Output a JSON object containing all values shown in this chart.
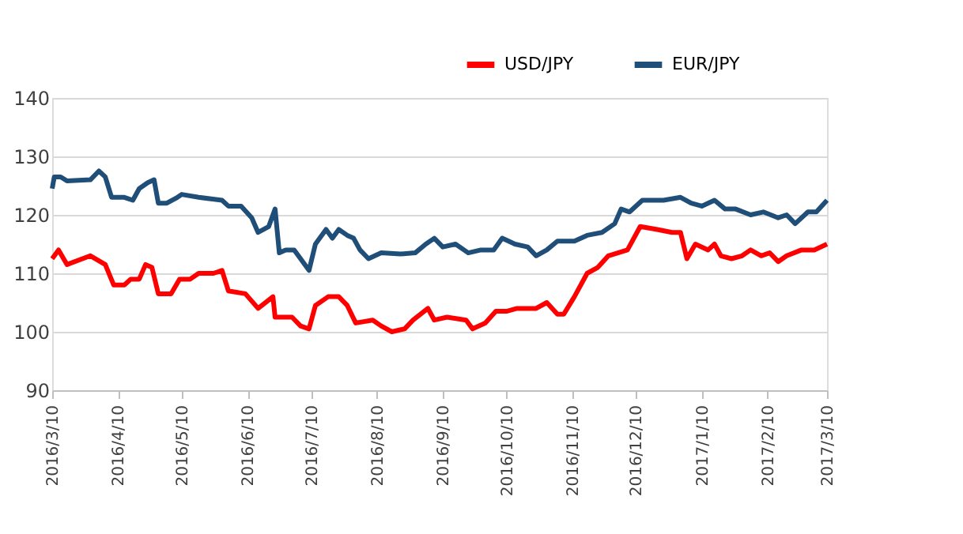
{
  "chart_data": {
    "type": "line",
    "x": [
      "2016-03-10",
      "2016-03-13",
      "2016-03-17",
      "2016-03-28",
      "2016-04-04",
      "2016-04-08",
      "2016-04-13",
      "2016-04-16",
      "2016-04-20",
      "2016-04-23",
      "2016-04-26",
      "2016-04-29",
      "2016-05-05",
      "2016-05-09",
      "2016-05-14",
      "2016-05-18",
      "2016-05-25",
      "2016-05-29",
      "2016-06-01",
      "2016-06-09",
      "2016-06-15",
      "2016-06-22",
      "2016-06-23",
      "2016-07-01",
      "2016-07-05",
      "2016-07-09",
      "2016-07-12",
      "2016-07-18",
      "2016-07-23",
      "2016-07-27",
      "2016-07-31",
      "2016-08-08",
      "2016-08-12",
      "2016-08-17",
      "2016-08-23",
      "2016-08-27",
      "2016-09-03",
      "2016-09-06",
      "2016-09-12",
      "2016-09-21",
      "2016-09-24",
      "2016-09-30",
      "2016-10-05",
      "2016-10-10",
      "2016-10-15",
      "2016-10-24",
      "2016-10-29",
      "2016-11-03",
      "2016-11-06",
      "2016-11-11",
      "2016-11-17",
      "2016-11-22",
      "2016-11-27",
      "2016-12-06",
      "2016-12-12",
      "2016-12-20",
      "2016-12-27",
      "2016-12-31",
      "2017-01-03",
      "2017-01-07",
      "2017-01-13",
      "2017-01-16",
      "2017-01-19",
      "2017-01-24",
      "2017-01-29",
      "2017-02-02",
      "2017-02-07",
      "2017-02-11",
      "2017-02-15",
      "2017-02-19",
      "2017-02-26",
      "2017-03-04",
      "2017-03-10"
    ],
    "series": [
      {
        "name": "USD/JPY",
        "color": "#ff0000",
        "values": [
          112.5,
          114,
          111.5,
          113,
          111.5,
          108,
          108,
          109,
          109,
          111.5,
          111,
          106.5,
          106.5,
          109,
          109,
          110,
          110,
          110.5,
          107,
          106.5,
          104,
          106,
          102.5,
          102.5,
          101,
          100.5,
          104.5,
          106,
          106,
          104.5,
          101.5,
          102,
          101,
          100,
          100.5,
          102,
          104,
          102,
          102.5,
          102,
          100.5,
          101.5,
          103.5,
          103.5,
          104,
          104,
          105,
          103,
          103,
          106,
          110,
          111,
          113,
          114,
          118,
          117.5,
          117,
          117,
          112.5,
          115,
          114,
          115,
          113,
          112.5,
          113,
          114,
          113,
          113.5,
          112,
          113,
          114,
          114,
          115
        ]
      },
      {
        "name": "EUR/JPY",
        "color": "#1f4e79",
        "x": [
          "2016-03-10",
          "2016-03-11",
          "2016-03-14",
          "2016-03-17",
          "2016-03-28",
          "2016-04-01",
          "2016-04-04",
          "2016-04-07",
          "2016-04-13",
          "2016-04-17",
          "2016-04-20",
          "2016-04-24",
          "2016-04-27",
          "2016-04-29",
          "2016-05-03",
          "2016-05-08",
          "2016-05-10",
          "2016-05-18",
          "2016-05-29",
          "2016-06-01",
          "2016-06-07",
          "2016-06-12",
          "2016-06-15",
          "2016-06-20",
          "2016-06-23",
          "2016-06-25",
          "2016-06-28",
          "2016-07-02",
          "2016-07-05",
          "2016-07-09",
          "2016-07-12",
          "2016-07-17",
          "2016-07-20",
          "2016-07-23",
          "2016-07-27",
          "2016-07-30",
          "2016-08-02",
          "2016-08-06",
          "2016-08-12",
          "2016-08-21",
          "2016-08-28",
          "2016-09-02",
          "2016-09-06",
          "2016-09-10",
          "2016-09-16",
          "2016-09-22",
          "2016-09-28",
          "2016-10-04",
          "2016-10-08",
          "2016-10-14",
          "2016-10-20",
          "2016-10-24",
          "2016-10-29",
          "2016-11-03",
          "2016-11-11",
          "2016-11-17",
          "2016-11-24",
          "2016-11-30",
          "2016-12-03",
          "2016-12-07",
          "2016-12-13",
          "2016-12-17",
          "2016-12-23",
          "2016-12-31",
          "2017-01-05",
          "2017-01-10",
          "2017-01-16",
          "2017-01-21",
          "2017-01-26",
          "2017-02-02",
          "2017-02-08",
          "2017-02-15",
          "2017-02-19",
          "2017-02-23",
          "2017-03-01",
          "2017-03-05",
          "2017-03-10"
        ],
        "values": [
          124.5,
          126.5,
          126.5,
          125.8,
          126,
          127.5,
          126.5,
          123,
          123,
          122.5,
          124.5,
          125.5,
          126,
          122,
          122,
          123,
          123.5,
          123,
          122.5,
          121.5,
          121.5,
          119.5,
          117,
          118,
          121,
          113.5,
          114,
          114,
          112.5,
          110.5,
          115,
          117.5,
          116,
          117.5,
          116.5,
          116,
          114,
          112.5,
          113.5,
          113.3,
          113.5,
          115,
          116,
          114.5,
          115,
          113.5,
          114,
          114,
          116,
          115,
          114.5,
          113,
          114,
          115.5,
          115.5,
          116.5,
          117,
          118.5,
          121,
          120.5,
          122.5,
          122.5,
          122.5,
          123,
          122,
          121.5,
          122.5,
          121,
          121,
          120,
          120.5,
          119.5,
          120,
          118.5,
          120.5,
          120.5,
          122.5
        ]
      }
    ],
    "xlim": [
      "2016-03-10",
      "2017-03-10"
    ],
    "xticks": [
      {
        "value": "2016-03-10",
        "label": "2016/3/10"
      },
      {
        "value": "2016-04-10",
        "label": "2016/4/10"
      },
      {
        "value": "2016-05-10",
        "label": "2016/5/10"
      },
      {
        "value": "2016-06-10",
        "label": "2016/6/10"
      },
      {
        "value": "2016-07-10",
        "label": "2016/7/10"
      },
      {
        "value": "2016-08-10",
        "label": "2016/8/10"
      },
      {
        "value": "2016-09-10",
        "label": "2016/9/10"
      },
      {
        "value": "2016-10-10",
        "label": "2016/10/10"
      },
      {
        "value": "2016-11-10",
        "label": "2016/11/10"
      },
      {
        "value": "2016-12-10",
        "label": "2016/12/10"
      },
      {
        "value": "2017-01-10",
        "label": "2017/1/10"
      },
      {
        "value": "2017-02-10",
        "label": "2017/2/10"
      },
      {
        "value": "2017-03-10",
        "label": "2017/3/10"
      }
    ],
    "ylim": [
      90,
      140
    ],
    "yticks": [
      90,
      100,
      110,
      120,
      130,
      140
    ],
    "grid": "y",
    "legend": "top right",
    "marker": "none",
    "line_style": "solid"
  }
}
